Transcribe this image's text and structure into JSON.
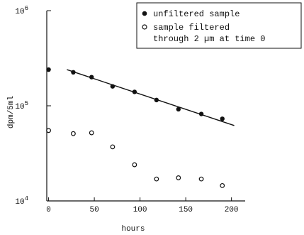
{
  "chart_data": {
    "type": "scatter",
    "xlabel": "hours",
    "ylabel": "dpm/5ml",
    "xlim": [
      -2,
      215
    ],
    "ylim": [
      10000,
      1000000
    ],
    "yscale": "log",
    "x_ticks": [
      0,
      50,
      100,
      150,
      200
    ],
    "x_tick_labels": [
      "0",
      "50",
      "100",
      "150",
      "200"
    ],
    "y_ticks": [
      10000,
      100000,
      1000000
    ],
    "y_tick_labels": [
      {
        "base": "10",
        "exp": "4"
      },
      {
        "base": "10",
        "exp": "5"
      },
      {
        "base": "10",
        "exp": "6"
      }
    ],
    "legend_position": "top-right",
    "series": [
      {
        "name": "unfiltered sample",
        "marker": "filled-circle",
        "color": "#111111",
        "points": [
          {
            "x": 0,
            "y": 240000
          },
          {
            "x": 27,
            "y": 225000
          },
          {
            "x": 47,
            "y": 200000
          },
          {
            "x": 70,
            "y": 160000
          },
          {
            "x": 94,
            "y": 140000
          },
          {
            "x": 118,
            "y": 115000
          },
          {
            "x": 142,
            "y": 92000
          },
          {
            "x": 167,
            "y": 82000
          },
          {
            "x": 190,
            "y": 73000
          }
        ],
        "fit_line": [
          {
            "x": 20,
            "y": 240000
          },
          {
            "x": 203,
            "y": 62000
          }
        ]
      },
      {
        "name": "sample filtered through 2 µm at time 0",
        "legend_lines": [
          "sample filtered",
          "through 2 µm at time 0"
        ],
        "marker": "open-circle",
        "color": "#111111",
        "points": [
          {
            "x": 0,
            "y": 55000
          },
          {
            "x": 27,
            "y": 51000
          },
          {
            "x": 47,
            "y": 52000
          },
          {
            "x": 70,
            "y": 37000
          },
          {
            "x": 94,
            "y": 24000
          },
          {
            "x": 118,
            "y": 17000
          },
          {
            "x": 142,
            "y": 17500
          },
          {
            "x": 167,
            "y": 17000
          },
          {
            "x": 190,
            "y": 14500
          }
        ]
      }
    ]
  }
}
